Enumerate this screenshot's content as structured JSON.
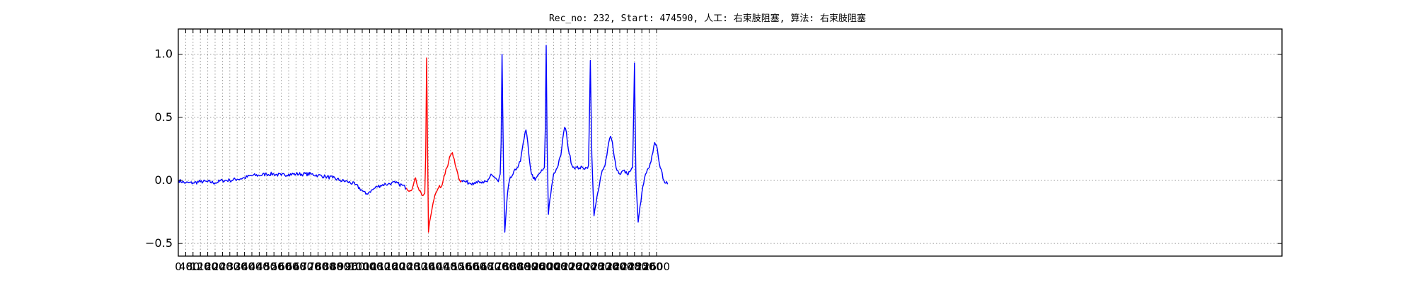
{
  "chart_data": {
    "type": "line",
    "title": "Rec_no: 232, Start: 474590, 人工: 右束肢阻塞, 算法: 右束肢阻塞",
    "xlabel": "",
    "ylabel": "",
    "xlim": [
      0,
      6000
    ],
    "ylim": [
      -0.6,
      1.2
    ],
    "grid": true,
    "yticks": [
      -0.5,
      0.0,
      0.5,
      1.0
    ],
    "ytick_labels": [
      "−0.5",
      "0.0",
      "0.5",
      "1.0"
    ],
    "xticks": [
      0,
      40,
      80,
      120,
      160,
      200,
      240,
      280,
      320,
      360,
      400,
      440,
      480,
      520,
      560,
      600,
      640,
      680,
      720,
      760,
      800,
      840,
      880,
      920,
      960,
      1000,
      1040,
      1080,
      1120,
      1160,
      1200,
      1240,
      1280,
      1320,
      1360,
      1400,
      1440,
      1480,
      1520,
      1560,
      1600,
      1640,
      1680,
      1720,
      1760,
      1800,
      1840,
      1880,
      1920,
      1960,
      2000,
      2040,
      2080,
      2120,
      2160,
      2200,
      2240,
      2280,
      2320,
      2360,
      2400,
      2440,
      2480,
      2520,
      2560,
      2600
    ],
    "series": [
      {
        "color": "#0000ff",
        "x": [
          0,
          40,
          80,
          120,
          160,
          200,
          240,
          280,
          320,
          360,
          400,
          440,
          480,
          520,
          560,
          600,
          640,
          680,
          720,
          760,
          800,
          840,
          880,
          920,
          960,
          1000,
          1020,
          1040,
          1060,
          1080,
          1100,
          1120,
          1140,
          1160,
          1180,
          1200,
          1220,
          1240
        ],
        "y": [
          0.0,
          -0.02,
          -0.02,
          -0.01,
          -0.01,
          -0.02,
          0.0,
          0.0,
          0.01,
          0.02,
          0.04,
          0.04,
          0.05,
          0.05,
          0.04,
          0.05,
          0.05,
          0.05,
          0.05,
          0.04,
          0.03,
          0.02,
          0.0,
          -0.01,
          -0.03,
          -0.08,
          -0.11,
          -0.09,
          -0.07,
          -0.05,
          -0.04,
          -0.03,
          -0.03,
          -0.02,
          -0.02,
          -0.03,
          -0.04,
          -0.06
        ]
      },
      {
        "color": "#ff0000",
        "x": [
          1240,
          1260,
          1275,
          1290,
          1305,
          1320,
          1330,
          1340,
          1345,
          1350,
          1355,
          1360,
          1370,
          1380,
          1390,
          1400,
          1410,
          1420,
          1430,
          1440,
          1450,
          1460,
          1470,
          1480,
          1490,
          1500,
          1510,
          1520,
          1530,
          1540
        ],
        "y": [
          -0.06,
          -0.08,
          -0.05,
          0.02,
          -0.06,
          -0.1,
          -0.12,
          -0.1,
          0.2,
          0.97,
          0.3,
          -0.41,
          -0.3,
          -0.22,
          -0.15,
          -0.1,
          -0.07,
          -0.04,
          -0.05,
          0.0,
          0.05,
          0.1,
          0.15,
          0.2,
          0.22,
          0.17,
          0.1,
          0.05,
          0.0,
          0.0
        ]
      },
      {
        "color": "#0000ff",
        "x": [
          1540,
          1560,
          1580,
          1600,
          1620,
          1640,
          1660,
          1680,
          1700,
          1720,
          1740,
          1750,
          1755,
          1760,
          1768,
          1775,
          1780,
          1790,
          1800,
          1820,
          1840,
          1860,
          1870,
          1880,
          1890,
          1900,
          1910,
          1920,
          1940,
          1960,
          1980,
          1990,
          1995,
          2000,
          2005,
          2012,
          2020,
          2040,
          2060,
          2080,
          2090,
          2100,
          2110,
          2120,
          2140,
          2160,
          2180,
          2200,
          2220,
          2230,
          2235,
          2240,
          2248,
          2260,
          2280,
          2300,
          2320,
          2330,
          2340,
          2350,
          2360,
          2380,
          2400,
          2420,
          2440,
          2460,
          2470,
          2475,
          2480,
          2488,
          2500,
          2520,
          2540,
          2560,
          2570,
          2580,
          2590,
          2600,
          2620,
          2640,
          2660
        ],
        "y": [
          0.0,
          -0.01,
          -0.02,
          -0.02,
          -0.01,
          -0.02,
          -0.02,
          -0.01,
          0.05,
          0.02,
          -0.01,
          0.05,
          0.3,
          1.0,
          0.1,
          -0.41,
          -0.3,
          -0.1,
          0.0,
          0.05,
          0.1,
          0.15,
          0.25,
          0.33,
          0.4,
          0.3,
          0.15,
          0.05,
          0.0,
          0.05,
          0.08,
          0.1,
          0.4,
          1.07,
          0.3,
          -0.27,
          -0.15,
          0.05,
          0.1,
          0.2,
          0.33,
          0.42,
          0.38,
          0.25,
          0.12,
          0.1,
          0.1,
          0.1,
          0.1,
          0.12,
          0.5,
          0.95,
          0.2,
          -0.28,
          -0.1,
          0.05,
          0.12,
          0.2,
          0.3,
          0.35,
          0.3,
          0.1,
          0.05,
          0.08,
          0.05,
          0.08,
          0.1,
          0.5,
          0.93,
          0.0,
          -0.33,
          -0.1,
          0.05,
          0.1,
          0.15,
          0.22,
          0.3,
          0.28,
          0.1,
          0.0,
          -0.03
        ]
      }
    ]
  }
}
